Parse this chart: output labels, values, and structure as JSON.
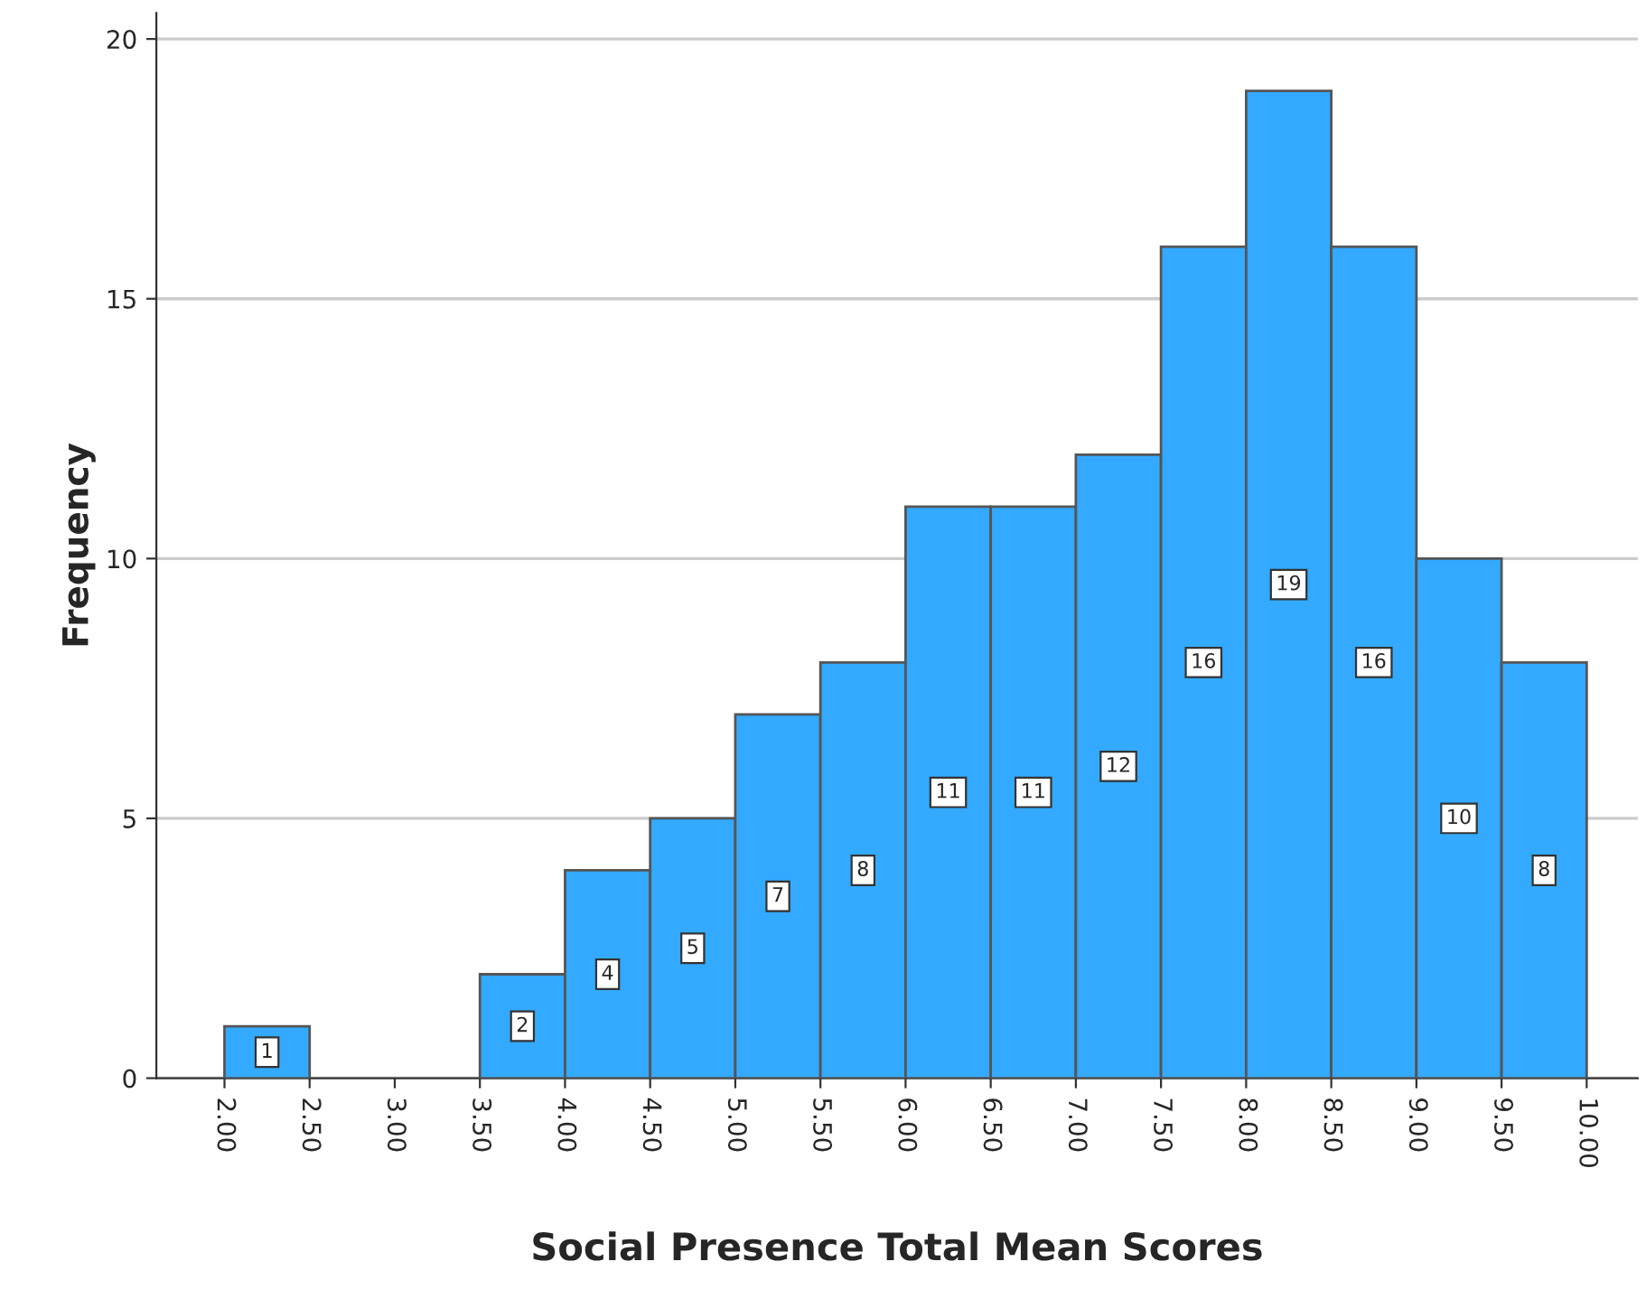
{
  "chart_data": {
    "type": "histogram",
    "xlabel": "Social Presence Total Mean Scores",
    "ylabel": "Frequency",
    "bins": [
      2.0,
      2.5,
      3.0,
      3.5,
      4.0,
      4.5,
      5.0,
      5.5,
      6.0,
      6.5,
      7.0,
      7.5,
      8.0,
      8.5,
      9.0,
      9.5,
      10.0
    ],
    "values": [
      1,
      0,
      0,
      2,
      4,
      5,
      7,
      8,
      11,
      11,
      12,
      16,
      19,
      16,
      10,
      8
    ],
    "value_labels": [
      "1",
      null,
      null,
      "2",
      "4",
      "5",
      "7",
      "8",
      "11",
      "11",
      "12",
      "16",
      "19",
      "16",
      "10",
      "8"
    ],
    "color": "#33aaff",
    "xlim": [
      1.6,
      10.3
    ],
    "xticks": [
      {
        "value": 2.0,
        "label": "2.00"
      },
      {
        "value": 2.5,
        "label": "2.50"
      },
      {
        "value": 3.0,
        "label": "3.00"
      },
      {
        "value": 3.5,
        "label": "3.50"
      },
      {
        "value": 4.0,
        "label": "4.00"
      },
      {
        "value": 4.5,
        "label": "4.50"
      },
      {
        "value": 5.0,
        "label": "5.00"
      },
      {
        "value": 5.5,
        "label": "5.50"
      },
      {
        "value": 6.0,
        "label": "6.00"
      },
      {
        "value": 6.5,
        "label": "6.50"
      },
      {
        "value": 7.0,
        "label": "7.00"
      },
      {
        "value": 7.5,
        "label": "7.50"
      },
      {
        "value": 8.0,
        "label": "8.00"
      },
      {
        "value": 8.5,
        "label": "8.50"
      },
      {
        "value": 9.0,
        "label": "9.00"
      },
      {
        "value": 9.5,
        "label": "9.50"
      },
      {
        "value": 10.0,
        "label": "10.00"
      }
    ],
    "ylim": [
      0,
      20.5
    ],
    "yticks": [
      0,
      5,
      10,
      15,
      20
    ],
    "grid": "y"
  }
}
